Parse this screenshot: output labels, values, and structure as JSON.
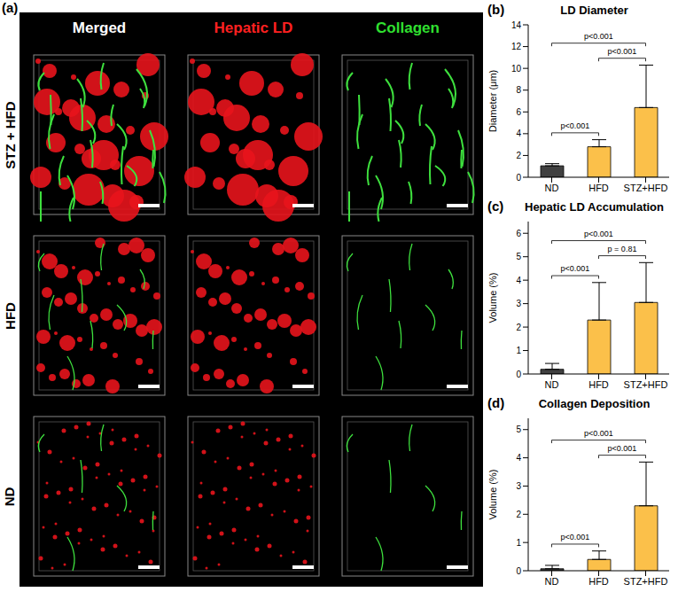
{
  "panel_a": {
    "label": "(a)",
    "columns": [
      "Merged",
      "Hepatic LD",
      "Collagen"
    ],
    "rows": [
      "STZ + HFD",
      "HFD",
      "ND"
    ]
  },
  "chart_data": [
    {
      "type": "bar",
      "panel": "(b)",
      "title": "LD Diameter",
      "y_label": "Diameter (μm)",
      "categories": [
        "ND",
        "HFD",
        "STZ+HFD"
      ],
      "values": [
        1.05,
        2.8,
        6.4
      ],
      "errors": [
        0.2,
        0.65,
        3.9
      ],
      "colors": [
        "#404040",
        "#fbc04a",
        "#fbc04a"
      ],
      "ylim": [
        0,
        14
      ],
      "yticks": [
        0,
        2,
        4,
        6,
        8,
        10,
        12,
        14
      ],
      "comparisons": [
        {
          "from": "ND",
          "to": "HFD",
          "label": "p<0.001"
        },
        {
          "from": "HFD",
          "to": "STZ+HFD",
          "label": "p<0.001"
        },
        {
          "from": "ND",
          "to": "STZ+HFD",
          "label": "p<0.001"
        }
      ]
    },
    {
      "type": "bar",
      "panel": "(c)",
      "title": "Hepatic LD Accumulation",
      "y_label": "Volume (%)",
      "categories": [
        "ND",
        "HFD",
        "STZ+HFD"
      ],
      "values": [
        0.2,
        2.3,
        3.05
      ],
      "errors": [
        0.25,
        1.6,
        1.7
      ],
      "colors": [
        "#404040",
        "#fbc04a",
        "#fbc04a"
      ],
      "ylim": [
        0,
        6.5
      ],
      "yticks": [
        0,
        1,
        2,
        3,
        4,
        5,
        6
      ],
      "comparisons": [
        {
          "from": "ND",
          "to": "HFD",
          "label": "p<0.001"
        },
        {
          "from": "HFD",
          "to": "STZ+HFD",
          "label": "p = 0.81"
        },
        {
          "from": "ND",
          "to": "STZ+HFD",
          "label": "p<0.001"
        }
      ]
    },
    {
      "type": "bar",
      "panel": "(d)",
      "title": "Collagen Deposition",
      "y_label": "Volume (%)",
      "categories": [
        "ND",
        "HFD",
        "STZ+HFD"
      ],
      "values": [
        0.07,
        0.4,
        2.3
      ],
      "errors": [
        0.12,
        0.3,
        1.55
      ],
      "colors": [
        "#404040",
        "#fbc04a",
        "#fbc04a"
      ],
      "ylim": [
        0,
        5.4
      ],
      "yticks": [
        0,
        1,
        2,
        3,
        4,
        5
      ],
      "comparisons": [
        {
          "from": "ND",
          "to": "HFD",
          "label": "p<0.001"
        },
        {
          "from": "HFD",
          "to": "STZ+HFD",
          "label": "p<0.001"
        },
        {
          "from": "ND",
          "to": "STZ+HFD",
          "label": "p<0.001"
        }
      ]
    }
  ]
}
